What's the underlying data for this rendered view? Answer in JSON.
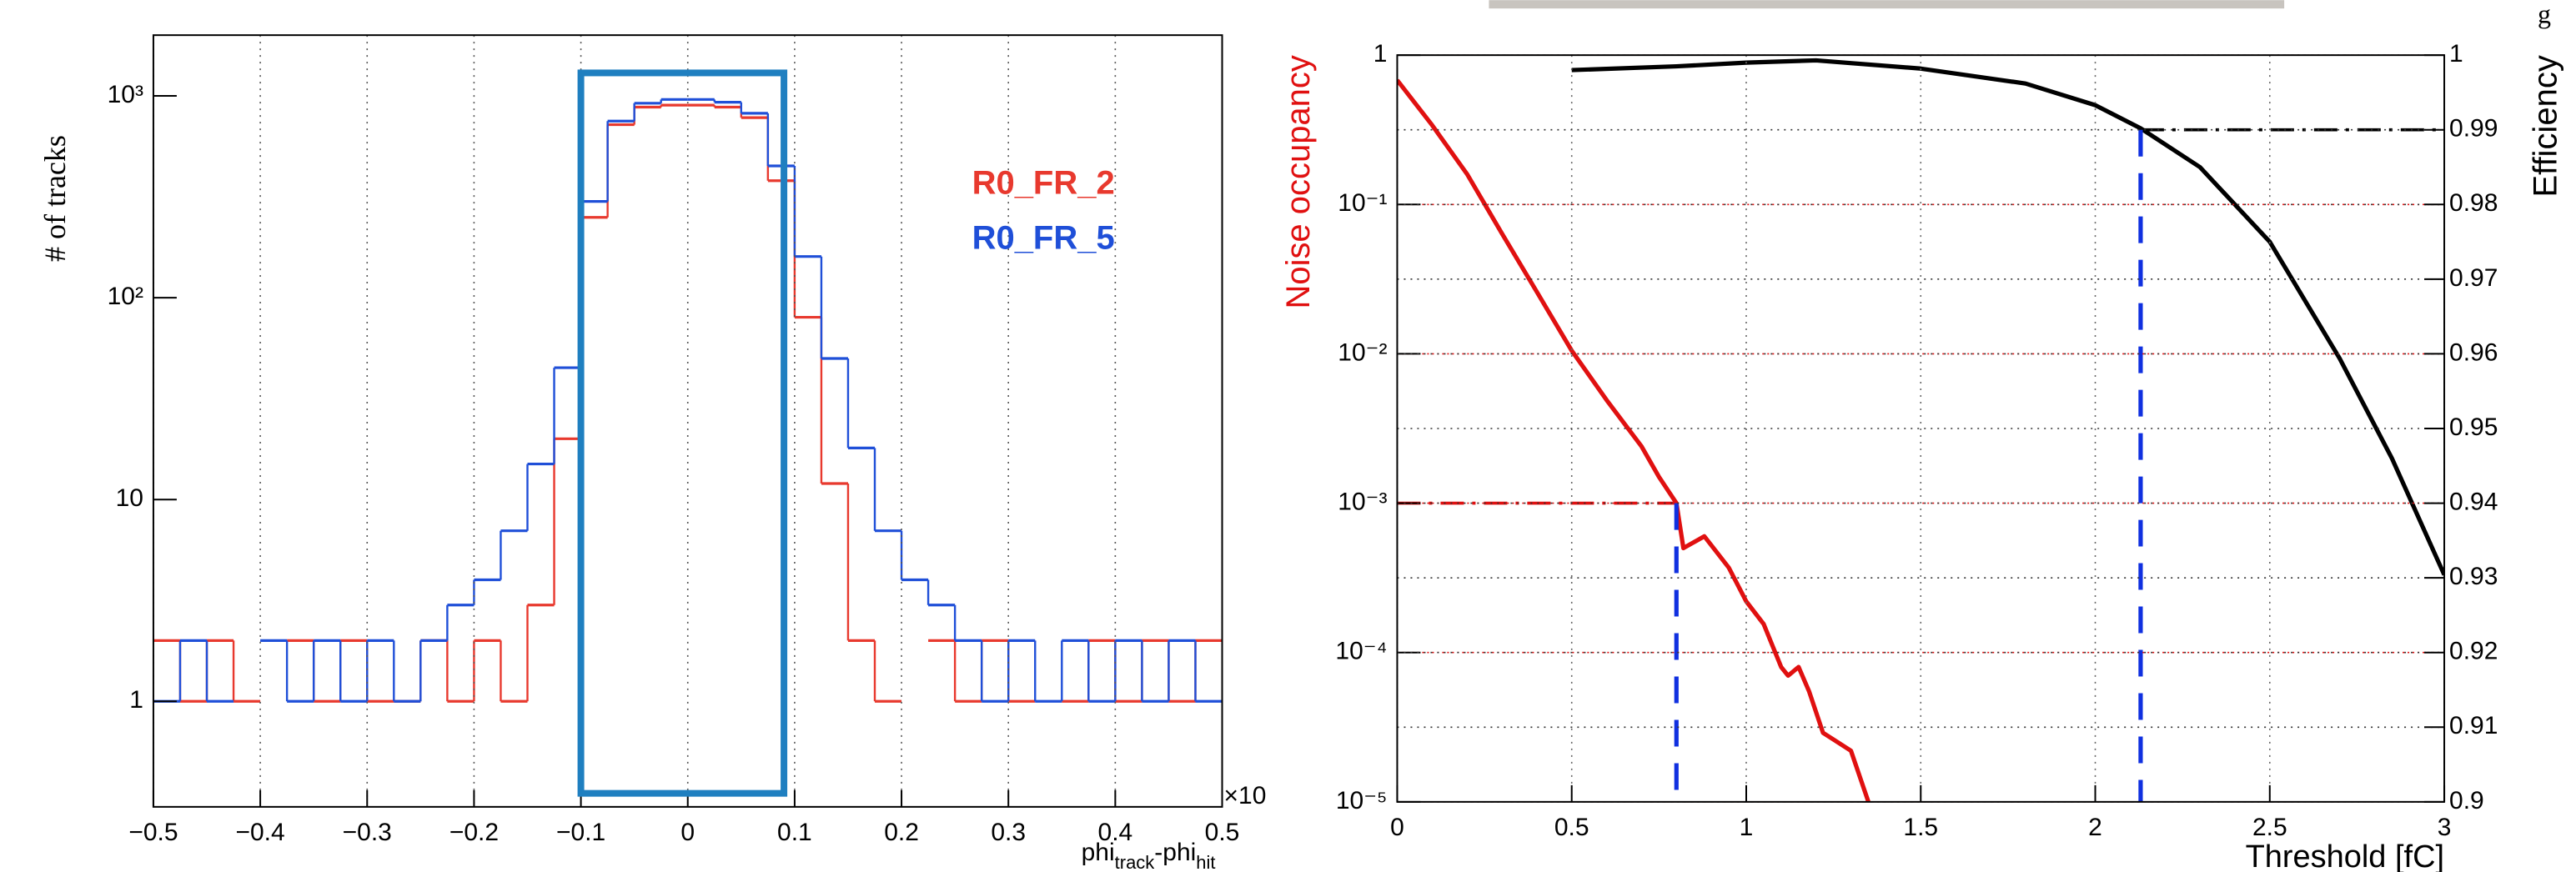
{
  "fragment_text": "g",
  "chart_data": [
    {
      "type": "histogram",
      "y_label": "# of tracks",
      "x_label": [
        "phi",
        "track",
        "-phi",
        "hit"
      ],
      "x_scale_label": "×10",
      "bins": [
        -0.5,
        -0.475,
        -0.45,
        -0.425,
        -0.4,
        -0.375,
        -0.35,
        -0.325,
        -0.3,
        -0.275,
        -0.25,
        -0.225,
        -0.2,
        -0.175,
        -0.15,
        -0.125,
        -0.1,
        -0.075,
        -0.05,
        -0.025,
        0,
        0.025,
        0.05,
        0.075,
        0.1,
        0.125,
        0.15,
        0.175,
        0.2,
        0.225,
        0.25,
        0.275,
        0.3,
        0.325,
        0.35,
        0.375,
        0.4,
        0.425,
        0.45,
        0.475,
        0.5
      ],
      "series": [
        {
          "name": "R0_FR_2",
          "color": "#e8392e",
          "values": [
            2,
            1,
            2,
            1,
            null,
            2,
            1,
            2,
            1,
            1,
            2,
            1,
            2,
            1,
            3,
            20,
            250,
            720,
            880,
            900,
            900,
            880,
            780,
            380,
            80,
            12,
            2,
            1,
            null,
            2,
            1,
            2,
            1,
            null,
            1,
            2,
            1,
            2,
            1,
            2
          ]
        },
        {
          "name": "R0_FR_5",
          "color": "#1f4fd8",
          "values": [
            1,
            2,
            1,
            null,
            2,
            1,
            2,
            1,
            2,
            1,
            2,
            3,
            4,
            7,
            15,
            45,
            300,
            750,
            920,
            960,
            960,
            930,
            820,
            450,
            160,
            50,
            18,
            7,
            4,
            3,
            2,
            1,
            2,
            1,
            2,
            1,
            2,
            1,
            2,
            1
          ]
        }
      ],
      "xlim": [
        -0.5,
        0.5
      ],
      "ylim": [
        0.3,
        2000
      ],
      "y_scale": "log",
      "xticks": [
        {
          "value": -0.5,
          "label": "−0.5"
        },
        {
          "value": -0.4,
          "label": "−0.4"
        },
        {
          "value": -0.3,
          "label": "−0.3"
        },
        {
          "value": -0.2,
          "label": "−0.2"
        },
        {
          "value": -0.1,
          "label": "−0.1"
        },
        0,
        0.1,
        0.2,
        0.3,
        0.4,
        0.5
      ],
      "yticks": [
        1,
        10,
        {
          "value": 100,
          "label": "10²"
        },
        {
          "value": 1000,
          "label": "10³"
        }
      ],
      "grid": "x",
      "legend": "upper right",
      "highlight_box": {
        "x": [
          -0.1,
          0.09
        ],
        "y": [
          0.35,
          1300
        ],
        "color": "#1f7fc0"
      }
    },
    {
      "type": "line",
      "x_label": "Threshold [fC]",
      "y_label": "Noise occupancy",
      "y2_label": "Efficiency",
      "series": [
        {
          "name": "Noise occupancy",
          "color": "#e01010",
          "axis": "y",
          "x": [
            0,
            0.1,
            0.2,
            0.3,
            0.4,
            0.5,
            0.6,
            0.7,
            0.75,
            0.8,
            0.82,
            0.88,
            0.95,
            1.0,
            1.05,
            1.1,
            1.12,
            1.15,
            1.18,
            1.22,
            1.3,
            1.35
          ],
          "values": [
            0.68,
            0.34,
            0.16,
            0.064,
            0.026,
            0.0105,
            0.0049,
            0.0024,
            0.0015,
            0.001,
            0.0005,
            0.0006,
            0.00037,
            0.00022,
            0.000155,
            8e-05,
            7e-05,
            8e-05,
            5.5e-05,
            2.9e-05,
            2.2e-05,
            1e-05
          ]
        },
        {
          "name": "Efficiency",
          "color": "#000000",
          "axis": "y2",
          "x": [
            0.5,
            0.8,
            1.0,
            1.2,
            1.5,
            1.8,
            2.0,
            2.13,
            2.3,
            2.5,
            2.7,
            2.85,
            3.0
          ],
          "values": [
            0.998,
            0.9985,
            0.999,
            0.9993,
            0.9982,
            0.9962,
            0.9933,
            0.9902,
            0.985,
            0.975,
            0.9594,
            0.946,
            0.9304
          ]
        }
      ],
      "xlim": [
        0,
        3
      ],
      "ylim": [
        1e-05,
        1
      ],
      "y_scale": "log",
      "y2lim": [
        0.9,
        1
      ],
      "xticks": [
        0,
        0.5,
        1,
        1.5,
        2,
        2.5,
        3
      ],
      "yticks": [
        {
          "value": 1e-05,
          "label": "10⁻⁵"
        },
        {
          "value": 0.0001,
          "label": "10⁻⁴"
        },
        {
          "value": 0.001,
          "label": "10⁻³"
        },
        {
          "value": 0.01,
          "label": "10⁻²"
        },
        {
          "value": 0.1,
          "label": "10⁻¹"
        },
        1
      ],
      "y2ticks": [
        0.9,
        0.91,
        0.92,
        0.93,
        0.94,
        0.95,
        0.96,
        0.97,
        0.98,
        0.99,
        1
      ],
      "grid": true,
      "reference_lines": [
        {
          "x": 0.8,
          "y": 0.001,
          "series": 0
        },
        {
          "x": 2.13,
          "y": 0.99,
          "series": 1
        }
      ],
      "drop_line_color": "#1030e0"
    }
  ]
}
